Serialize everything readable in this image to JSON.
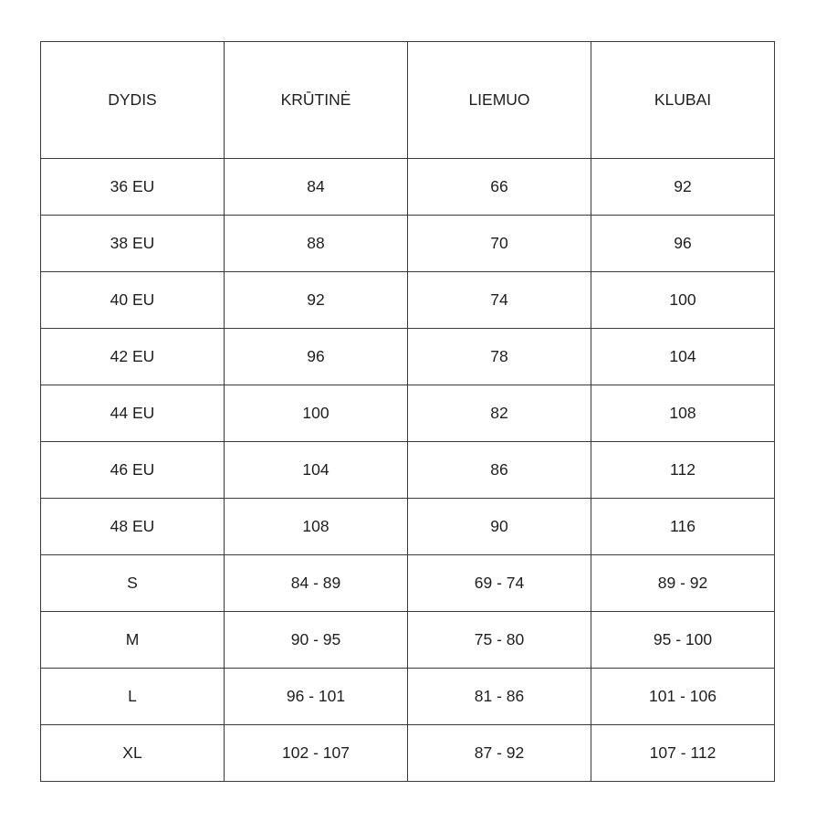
{
  "table": {
    "headers": [
      "DYDIS",
      "KRŪTINĖ",
      "LIEMUO",
      "KLUBAI"
    ],
    "rows": [
      [
        "36 EU",
        "84",
        "66",
        "92"
      ],
      [
        "38 EU",
        "88",
        "70",
        "96"
      ],
      [
        "40 EU",
        "92",
        "74",
        "100"
      ],
      [
        "42 EU",
        "96",
        "78",
        "104"
      ],
      [
        "44 EU",
        "100",
        "82",
        "108"
      ],
      [
        "46 EU",
        "104",
        "86",
        "112"
      ],
      [
        "48 EU",
        "108",
        "90",
        "116"
      ],
      [
        "S",
        "84 - 89",
        "69 - 74",
        "89 - 92"
      ],
      [
        "M",
        "90 - 95",
        "75 - 80",
        "95 - 100"
      ],
      [
        "L",
        "96 - 101",
        "81 - 86",
        "101 - 106"
      ],
      [
        "XL",
        "102 - 107",
        "87 - 92",
        "107 - 112"
      ]
    ]
  }
}
